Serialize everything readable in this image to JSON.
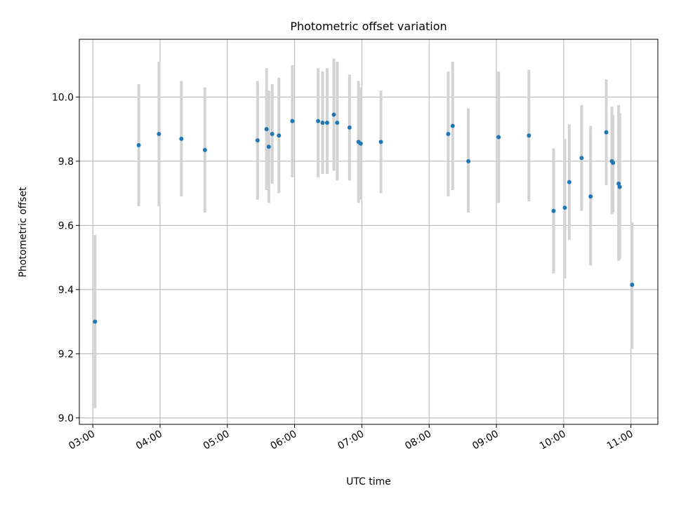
{
  "chart_data": {
    "type": "scatter",
    "title": "Photometric offset variation",
    "xlabel": "UTC time",
    "ylabel": "Photometric offset",
    "x_tick_labels": [
      "03:00",
      "04:00",
      "05:00",
      "06:00",
      "07:00",
      "08:00",
      "09:00",
      "10:00",
      "11:00"
    ],
    "y_tick_labels": [
      "9.0",
      "9.2",
      "9.4",
      "9.6",
      "9.8",
      "10.0"
    ],
    "ylim": [
      8.98,
      10.18
    ],
    "xlim": [
      "02:48",
      "11:24"
    ],
    "grid": true,
    "legend": "none",
    "colors": {
      "point": "#1f77b4",
      "errorbar": "#d3d3d3",
      "grid": "#b0b0b0"
    },
    "series": [
      {
        "points": [
          {
            "x": "03:02",
            "y": 9.3,
            "lo": 9.03,
            "hi": 9.57
          },
          {
            "x": "03:41",
            "y": 9.85,
            "lo": 9.66,
            "hi": 10.04
          },
          {
            "x": "03:59",
            "y": 9.885,
            "lo": 9.66,
            "hi": 10.11
          },
          {
            "x": "04:19",
            "y": 9.87,
            "lo": 9.69,
            "hi": 10.05
          },
          {
            "x": "04:40",
            "y": 9.835,
            "lo": 9.64,
            "hi": 10.03
          },
          {
            "x": "05:27",
            "y": 9.865,
            "lo": 9.68,
            "hi": 10.05
          },
          {
            "x": "05:35",
            "y": 9.9,
            "lo": 9.71,
            "hi": 10.09
          },
          {
            "x": "05:37",
            "y": 9.845,
            "lo": 9.67,
            "hi": 10.02
          },
          {
            "x": "05:40",
            "y": 9.885,
            "lo": 9.73,
            "hi": 10.04
          },
          {
            "x": "05:46",
            "y": 9.88,
            "lo": 9.7,
            "hi": 10.06
          },
          {
            "x": "05:58",
            "y": 9.925,
            "lo": 9.75,
            "hi": 10.1
          },
          {
            "x": "06:21",
            "y": 9.925,
            "lo": 9.75,
            "hi": 10.09
          },
          {
            "x": "06:25",
            "y": 9.92,
            "lo": 9.76,
            "hi": 10.08
          },
          {
            "x": "06:29",
            "y": 9.92,
            "lo": 9.76,
            "hi": 10.09
          },
          {
            "x": "06:35",
            "y": 9.945,
            "lo": 9.77,
            "hi": 10.12
          },
          {
            "x": "06:38",
            "y": 9.92,
            "lo": 9.74,
            "hi": 10.11
          },
          {
            "x": "06:49",
            "y": 9.905,
            "lo": 9.74,
            "hi": 10.07
          },
          {
            "x": "06:57",
            "y": 9.86,
            "lo": 9.67,
            "hi": 10.05
          },
          {
            "x": "06:59",
            "y": 9.855,
            "lo": 9.68,
            "hi": 10.03
          },
          {
            "x": "07:17",
            "y": 9.86,
            "lo": 9.7,
            "hi": 10.02
          },
          {
            "x": "08:17",
            "y": 9.885,
            "lo": 9.69,
            "hi": 10.08
          },
          {
            "x": "08:21",
            "y": 9.91,
            "lo": 9.71,
            "hi": 10.11
          },
          {
            "x": "08:35",
            "y": 9.8,
            "lo": 9.64,
            "hi": 9.965
          },
          {
            "x": "09:02",
            "y": 9.875,
            "lo": 9.67,
            "hi": 10.08
          },
          {
            "x": "09:29",
            "y": 9.88,
            "lo": 9.675,
            "hi": 10.085
          },
          {
            "x": "09:51",
            "y": 9.645,
            "lo": 9.45,
            "hi": 9.84
          },
          {
            "x": "10:01",
            "y": 9.655,
            "lo": 9.435,
            "hi": 9.87
          },
          {
            "x": "10:05",
            "y": 9.735,
            "lo": 9.555,
            "hi": 9.915
          },
          {
            "x": "10:16",
            "y": 9.81,
            "lo": 9.645,
            "hi": 9.975
          },
          {
            "x": "10:24",
            "y": 9.69,
            "lo": 9.475,
            "hi": 9.91
          },
          {
            "x": "10:38",
            "y": 9.89,
            "lo": 9.725,
            "hi": 10.055
          },
          {
            "x": "10:43",
            "y": 9.8,
            "lo": 9.635,
            "hi": 9.97
          },
          {
            "x": "10:44",
            "y": 9.795,
            "lo": 9.64,
            "hi": 9.945
          },
          {
            "x": "10:49",
            "y": 9.73,
            "lo": 9.49,
            "hi": 9.975
          },
          {
            "x": "10:50",
            "y": 9.72,
            "lo": 9.495,
            "hi": 9.95
          },
          {
            "x": "11:01",
            "y": 9.415,
            "lo": 9.215,
            "hi": 9.61
          }
        ]
      }
    ]
  }
}
